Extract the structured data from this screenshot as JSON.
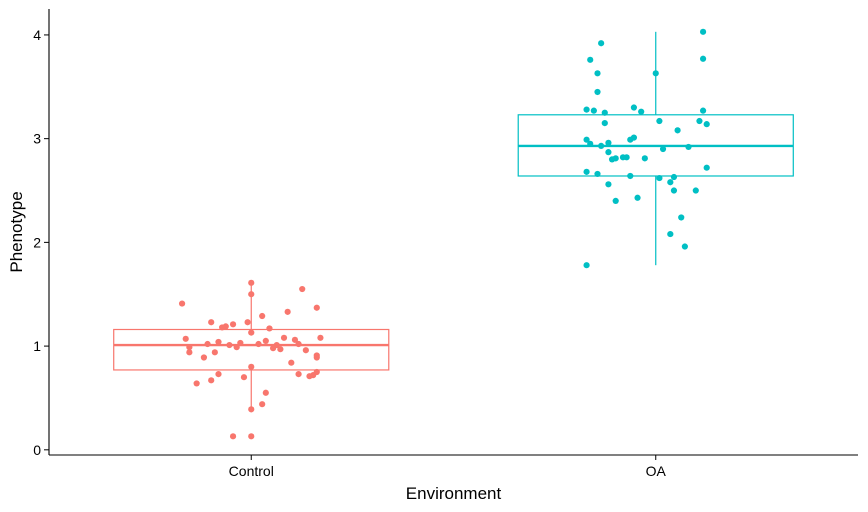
{
  "chart_data": {
    "type": "boxplot",
    "xlabel": "Environment",
    "ylabel": "Phenotype",
    "categories": [
      "Control",
      "OA"
    ],
    "ylim": [
      -0.05,
      4.25
    ],
    "yticks": [
      0,
      1,
      2,
      3,
      4
    ],
    "grid": false,
    "legend": "none",
    "colors": {
      "Control": "#F8766D",
      "OA": "#00BFC4"
    },
    "boxes": [
      {
        "group": "Control",
        "whisker_low": 0.38,
        "q1": 0.77,
        "median": 1.01,
        "q3": 1.16,
        "whisker_high": 1.61
      },
      {
        "group": "OA",
        "whisker_low": 1.78,
        "q1": 2.64,
        "median": 2.93,
        "q3": 3.23,
        "whisker_high": 4.03
      }
    ],
    "points": {
      "Control": [
        {
          "x": -0.19,
          "y": 1.41
        },
        {
          "x": -0.18,
          "y": 1.07
        },
        {
          "x": -0.17,
          "y": 0.99
        },
        {
          "x": -0.17,
          "y": 0.94
        },
        {
          "x": -0.15,
          "y": 0.64
        },
        {
          "x": -0.13,
          "y": 0.89
        },
        {
          "x": -0.12,
          "y": 1.02
        },
        {
          "x": -0.11,
          "y": 0.67
        },
        {
          "x": -0.11,
          "y": 1.23
        },
        {
          "x": -0.1,
          "y": 0.94
        },
        {
          "x": -0.09,
          "y": 0.73
        },
        {
          "x": -0.09,
          "y": 1.04
        },
        {
          "x": -0.08,
          "y": 1.18
        },
        {
          "x": -0.07,
          "y": 1.19
        },
        {
          "x": -0.06,
          "y": 1.01
        },
        {
          "x": -0.05,
          "y": 0.13
        },
        {
          "x": -0.05,
          "y": 1.21
        },
        {
          "x": -0.04,
          "y": 0.99
        },
        {
          "x": -0.03,
          "y": 1.03
        },
        {
          "x": -0.02,
          "y": 0.7
        },
        {
          "x": -0.01,
          "y": 1.23
        },
        {
          "x": 0.0,
          "y": 1.13
        },
        {
          "x": 0.0,
          "y": 0.8
        },
        {
          "x": 0.0,
          "y": 0.39
        },
        {
          "x": 0.0,
          "y": 0.13
        },
        {
          "x": 0.0,
          "y": 1.5
        },
        {
          "x": 0.0,
          "y": 1.61
        },
        {
          "x": 0.02,
          "y": 1.02
        },
        {
          "x": 0.03,
          "y": 0.44
        },
        {
          "x": 0.03,
          "y": 1.29
        },
        {
          "x": 0.04,
          "y": 0.55
        },
        {
          "x": 0.04,
          "y": 1.05
        },
        {
          "x": 0.05,
          "y": 1.17
        },
        {
          "x": 0.06,
          "y": 0.98
        },
        {
          "x": 0.07,
          "y": 1.01
        },
        {
          "x": 0.08,
          "y": 0.97
        },
        {
          "x": 0.09,
          "y": 1.08
        },
        {
          "x": 0.1,
          "y": 1.33
        },
        {
          "x": 0.11,
          "y": 0.84
        },
        {
          "x": 0.12,
          "y": 1.06
        },
        {
          "x": 0.13,
          "y": 0.73
        },
        {
          "x": 0.13,
          "y": 1.02
        },
        {
          "x": 0.14,
          "y": 1.55
        },
        {
          "x": 0.15,
          "y": 0.96
        },
        {
          "x": 0.16,
          "y": 0.71
        },
        {
          "x": 0.17,
          "y": 0.72
        },
        {
          "x": 0.18,
          "y": 0.75
        },
        {
          "x": 0.18,
          "y": 0.89
        },
        {
          "x": 0.18,
          "y": 0.91
        },
        {
          "x": 0.18,
          "y": 1.37
        },
        {
          "x": 0.19,
          "y": 1.08
        }
      ],
      "OA": [
        {
          "x": -0.19,
          "y": 1.78
        },
        {
          "x": -0.19,
          "y": 2.68
        },
        {
          "x": -0.19,
          "y": 2.99
        },
        {
          "x": -0.19,
          "y": 3.28
        },
        {
          "x": -0.18,
          "y": 3.76
        },
        {
          "x": -0.18,
          "y": 2.95
        },
        {
          "x": -0.17,
          "y": 3.27
        },
        {
          "x": -0.16,
          "y": 3.45
        },
        {
          "x": -0.16,
          "y": 3.63
        },
        {
          "x": -0.16,
          "y": 2.66
        },
        {
          "x": -0.15,
          "y": 3.92
        },
        {
          "x": -0.15,
          "y": 2.93
        },
        {
          "x": -0.14,
          "y": 3.15
        },
        {
          "x": -0.14,
          "y": 3.25
        },
        {
          "x": -0.13,
          "y": 2.96
        },
        {
          "x": -0.13,
          "y": 2.56
        },
        {
          "x": -0.13,
          "y": 2.87
        },
        {
          "x": -0.12,
          "y": 2.8
        },
        {
          "x": -0.11,
          "y": 2.4
        },
        {
          "x": -0.11,
          "y": 2.81
        },
        {
          "x": -0.09,
          "y": 2.82
        },
        {
          "x": -0.08,
          "y": 2.82
        },
        {
          "x": -0.07,
          "y": 2.99
        },
        {
          "x": -0.07,
          "y": 2.64
        },
        {
          "x": -0.06,
          "y": 3.01
        },
        {
          "x": -0.06,
          "y": 3.3
        },
        {
          "x": -0.05,
          "y": 2.43
        },
        {
          "x": -0.04,
          "y": 3.26
        },
        {
          "x": -0.03,
          "y": 2.81
        },
        {
          "x": 0.0,
          "y": 3.63
        },
        {
          "x": 0.01,
          "y": 3.17
        },
        {
          "x": 0.01,
          "y": 2.62
        },
        {
          "x": 0.02,
          "y": 2.9
        },
        {
          "x": 0.04,
          "y": 2.58
        },
        {
          "x": 0.04,
          "y": 2.08
        },
        {
          "x": 0.05,
          "y": 2.5
        },
        {
          "x": 0.05,
          "y": 2.63
        },
        {
          "x": 0.06,
          "y": 3.08
        },
        {
          "x": 0.07,
          "y": 2.24
        },
        {
          "x": 0.08,
          "y": 1.96
        },
        {
          "x": 0.09,
          "y": 2.92
        },
        {
          "x": 0.11,
          "y": 2.5
        },
        {
          "x": 0.12,
          "y": 3.17
        },
        {
          "x": 0.13,
          "y": 3.27
        },
        {
          "x": 0.13,
          "y": 3.77
        },
        {
          "x": 0.13,
          "y": 4.03
        },
        {
          "x": 0.14,
          "y": 2.72
        },
        {
          "x": 0.14,
          "y": 3.14
        }
      ]
    }
  }
}
